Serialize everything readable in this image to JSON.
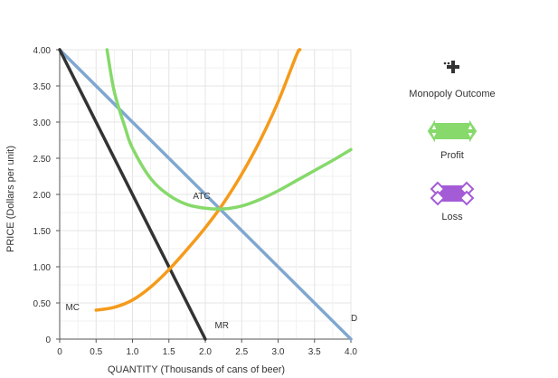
{
  "chart_data": {
    "type": "line",
    "xlabel": "QUANTITY (Thousands of cans of beer)",
    "ylabel": "PRICE (Dollars per unit)",
    "xlim": [
      0,
      4.0
    ],
    "ylim": [
      0,
      4.0
    ],
    "x_ticks": [
      "0",
      "0.5",
      "1.0",
      "1.5",
      "2.0",
      "2.5",
      "3.0",
      "3.5",
      "4.0"
    ],
    "y_ticks": [
      "0",
      "0.50",
      "1.00",
      "1.50",
      "2.00",
      "2.50",
      "3.00",
      "3.50",
      "4.00"
    ],
    "grid": true,
    "series": [
      {
        "name": "D",
        "color": "#7fa7d0",
        "points": [
          [
            0,
            4.0
          ],
          [
            4.0,
            0
          ]
        ]
      },
      {
        "name": "MR",
        "color": "#333333",
        "points": [
          [
            0,
            4.0
          ],
          [
            2.0,
            0
          ]
        ]
      },
      {
        "name": "MC",
        "color": "#f59a1b",
        "points": [
          [
            0.5,
            0.4
          ],
          [
            0.75,
            0.44
          ],
          [
            1.0,
            0.54
          ],
          [
            1.25,
            0.72
          ],
          [
            1.5,
            0.96
          ],
          [
            1.75,
            1.24
          ],
          [
            2.0,
            1.54
          ],
          [
            2.25,
            1.88
          ],
          [
            2.5,
            2.28
          ],
          [
            2.75,
            2.74
          ],
          [
            3.0,
            3.28
          ],
          [
            3.25,
            3.92
          ],
          [
            3.3,
            4.0
          ]
        ]
      },
      {
        "name": "ATC",
        "color": "#86d96a",
        "points": [
          [
            0.65,
            4.0
          ],
          [
            0.75,
            3.42
          ],
          [
            0.9,
            2.92
          ],
          [
            1.0,
            2.64
          ],
          [
            1.25,
            2.22
          ],
          [
            1.5,
            1.99
          ],
          [
            1.75,
            1.86
          ],
          [
            2.0,
            1.81
          ],
          [
            2.25,
            1.8
          ],
          [
            2.5,
            1.84
          ],
          [
            2.75,
            1.93
          ],
          [
            3.0,
            2.05
          ],
          [
            3.25,
            2.19
          ],
          [
            3.5,
            2.33
          ],
          [
            3.75,
            2.47
          ],
          [
            4.0,
            2.62
          ]
        ]
      }
    ],
    "curve_labels": [
      {
        "text": "D",
        "x": 4.0,
        "y": 0.25
      },
      {
        "text": "MR",
        "x": 2.13,
        "y": 0.15
      },
      {
        "text": "MC",
        "x": 0.08,
        "y": 0.4
      },
      {
        "text": "ATC",
        "x": 1.83,
        "y": 1.94
      }
    ]
  },
  "palette": {
    "items": [
      {
        "label": "Monopoly Outcome",
        "tool": "cross-marker",
        "color": "#333333"
      },
      {
        "label": "Profit",
        "tool": "profit-area",
        "color": "#86d96a"
      },
      {
        "label": "Loss",
        "tool": "loss-area",
        "color": "#a45bd6"
      }
    ]
  }
}
